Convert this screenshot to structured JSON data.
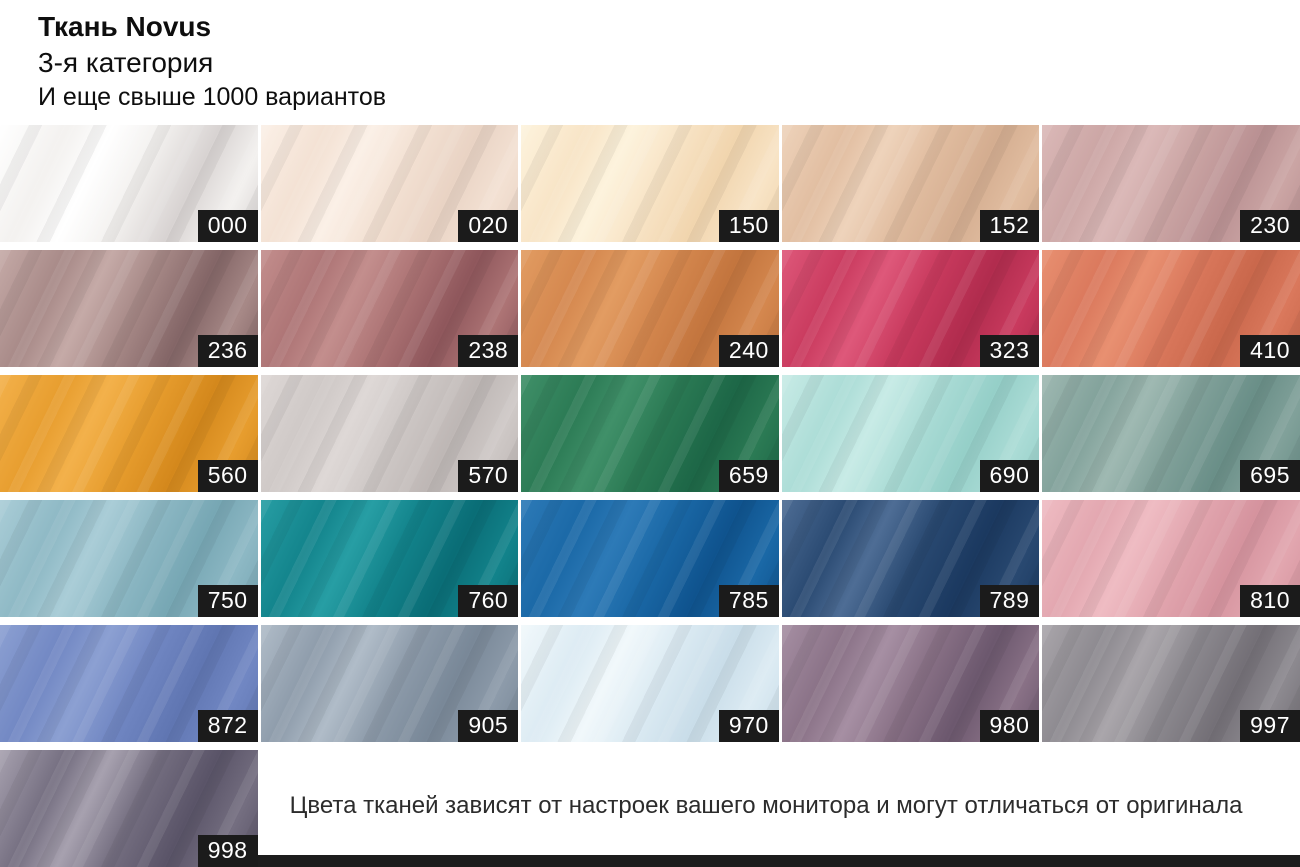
{
  "header": {
    "title": "Ткань Novus",
    "subtitle": "3-я категория",
    "tagline": "И еще свыше 1000 вариантов"
  },
  "label_style": {
    "bg": "#1b1b1b",
    "fg": "#ffffff"
  },
  "swatches": [
    {
      "code": "000",
      "light": "#ffffff",
      "base": "#f3f1ef",
      "dark": "#d8d3d2"
    },
    {
      "code": "020",
      "light": "#fbf0e7",
      "base": "#f3e1d3",
      "dark": "#e9d3c4"
    },
    {
      "code": "150",
      "light": "#fdf3dd",
      "base": "#f8e4c6",
      "dark": "#f1d5ae"
    },
    {
      "code": "152",
      "light": "#eed3bb",
      "base": "#e1bda0",
      "dark": "#d4ad90"
    },
    {
      "code": "230",
      "light": "#dbb9b8",
      "base": "#cba5a4",
      "dark": "#ba9193"
    },
    {
      "code": "236",
      "light": "#c5aaa7",
      "base": "#a78987",
      "dark": "#846667"
    },
    {
      "code": "238",
      "light": "#c38e8d",
      "base": "#ad7475",
      "dark": "#8f575c"
    },
    {
      "code": "240",
      "light": "#e29c62",
      "base": "#d4874e",
      "dark": "#c3753e"
    },
    {
      "code": "323",
      "light": "#de587a",
      "base": "#c93a5e",
      "dark": "#b12c4e"
    },
    {
      "code": "410",
      "light": "#e89071",
      "base": "#da785c",
      "dark": "#ca684c"
    },
    {
      "code": "560",
      "light": "#f3b14b",
      "base": "#e79d2e",
      "dark": "#d4881c"
    },
    {
      "code": "570",
      "light": "#ded8d6",
      "base": "#cec8c6",
      "dark": "#beb7b5"
    },
    {
      "code": "659",
      "light": "#409069",
      "base": "#2b7a54",
      "dark": "#1d6747"
    },
    {
      "code": "690",
      "light": "#c8ebe6",
      "base": "#abdcd6",
      "dark": "#95cfc8"
    },
    {
      "code": "695",
      "light": "#9fb9b2",
      "base": "#81a19a",
      "dark": "#6a8f88"
    },
    {
      "code": "750",
      "light": "#aacdd7",
      "base": "#8db8c4",
      "dark": "#77a7b4"
    },
    {
      "code": "760",
      "light": "#279ea4",
      "base": "#12838b",
      "dark": "#0a6d76"
    },
    {
      "code": "785",
      "light": "#2d7ab7",
      "base": "#1a68a6",
      "dark": "#0f538e"
    },
    {
      "code": "789",
      "light": "#4e6d95",
      "base": "#294971",
      "dark": "#1b3960"
    },
    {
      "code": "810",
      "light": "#efbcc3",
      "base": "#e2a6af",
      "dark": "#d5939e"
    },
    {
      "code": "872",
      "light": "#8ca0d2",
      "base": "#7187c3",
      "dark": "#6076b2"
    },
    {
      "code": "905",
      "light": "#b0bcc8",
      "base": "#8d9baa",
      "dark": "#798898"
    },
    {
      "code": "970",
      "light": "#f1f8fb",
      "base": "#dcebf3",
      "dark": "#c9dde9"
    },
    {
      "code": "980",
      "light": "#a68fa3",
      "base": "#897186",
      "dark": "#6c586e"
    },
    {
      "code": "997",
      "light": "#aaa6ab",
      "base": "#8c898f",
      "dark": "#747077"
    },
    {
      "code": "998",
      "light": "#a7a1af",
      "base": "#746e80",
      "dark": "#5a5468"
    }
  ],
  "note": "Цвета тканей зависят от настроек вашего монитора и могут отличаться от оригинала"
}
